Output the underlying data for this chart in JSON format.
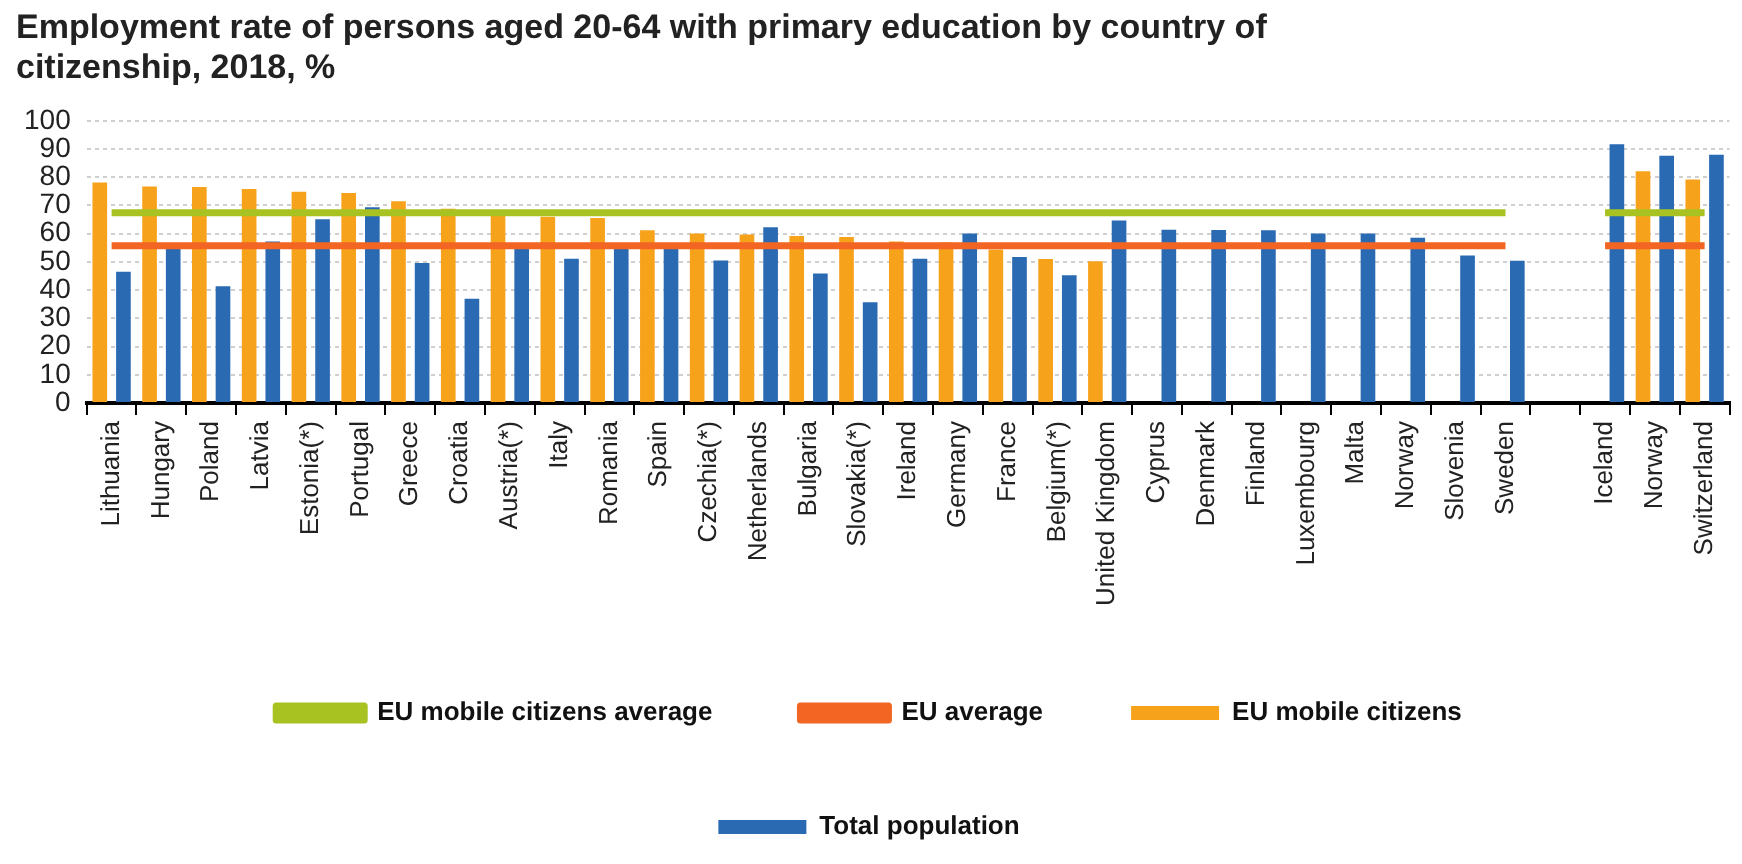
{
  "chart_data": {
    "type": "bar",
    "title": "Employment rate of persons aged 20-64 with primary education by country of citizenship, 2018, %",
    "categories": [
      "Lithuania",
      "Hungary",
      "Poland",
      "Latvia",
      "Estonia(*)",
      "Portugal",
      "Greece",
      "Croatia",
      "Austria(*)",
      "Italy",
      "Romania",
      "Spain",
      "Czechia(*)",
      "Netherlands",
      "Bulgaria",
      "Slovakia(*)",
      "Ireland",
      "Germany",
      "France",
      "Belgium(*)",
      "United Kingdom",
      "Cyprus",
      "Denmark",
      "Finland",
      "Luxembourg",
      "Malta",
      "Norway",
      "Slovenia",
      "Sweden",
      null,
      "Iceland",
      "Norway",
      "Switzerland"
    ],
    "series": [
      {
        "name": "EU mobile citizens",
        "color": "#f7a21b",
        "values": [
          78.1,
          76.7,
          76.5,
          75.8,
          74.9,
          74.4,
          71.5,
          68.8,
          68.4,
          66.0,
          65.6,
          61.2,
          60.1,
          59.7,
          59.2,
          58.8,
          57.2,
          56.9,
          54.4,
          51.0,
          50.2,
          null,
          null,
          null,
          null,
          null,
          null,
          null,
          null,
          null,
          null,
          82.1,
          79.2
        ]
      },
      {
        "name": "Total population",
        "color": "#2a6ab3",
        "values": [
          46.5,
          55.4,
          41.4,
          57.2,
          65.1,
          69.4,
          49.6,
          36.9,
          55.4,
          51.1,
          55.2,
          55.1,
          50.5,
          62.3,
          45.9,
          35.7,
          51.1,
          60.1,
          51.7,
          45.3,
          64.7,
          61.4,
          61.3,
          61.2,
          60.1,
          60.1,
          58.6,
          52.3,
          50.4,
          null,
          91.7,
          87.6,
          88.0
        ]
      },
      {
        "name": "EU mobile citizens average",
        "type": "line",
        "color": "#a8c221",
        "values": [
          67.4,
          67.4,
          67.4,
          67.4,
          67.4,
          67.4,
          67.4,
          67.4,
          67.4,
          67.4,
          67.4,
          67.4,
          67.4,
          67.4,
          67.4,
          67.4,
          67.4,
          67.4,
          67.4,
          67.4,
          67.4,
          67.4,
          67.4,
          67.4,
          67.4,
          67.4,
          67.4,
          67.4,
          67.4,
          null,
          67.4,
          67.4,
          67.4
        ]
      },
      {
        "name": "EU average",
        "type": "line",
        "color": "#f26522",
        "values": [
          55.7,
          55.7,
          55.7,
          55.7,
          55.7,
          55.7,
          55.7,
          55.7,
          55.7,
          55.7,
          55.7,
          55.7,
          55.7,
          55.7,
          55.7,
          55.7,
          55.7,
          55.7,
          55.7,
          55.7,
          55.7,
          55.7,
          55.7,
          55.7,
          55.7,
          55.7,
          55.7,
          55.7,
          55.7,
          null,
          55.7,
          55.7,
          55.7
        ]
      }
    ],
    "ylim": [
      0,
      100
    ],
    "yticks": [
      0,
      10,
      20,
      30,
      40,
      50,
      60,
      70,
      80,
      90,
      100
    ],
    "grid": "y",
    "legend": "bottom",
    "marker": "none"
  }
}
